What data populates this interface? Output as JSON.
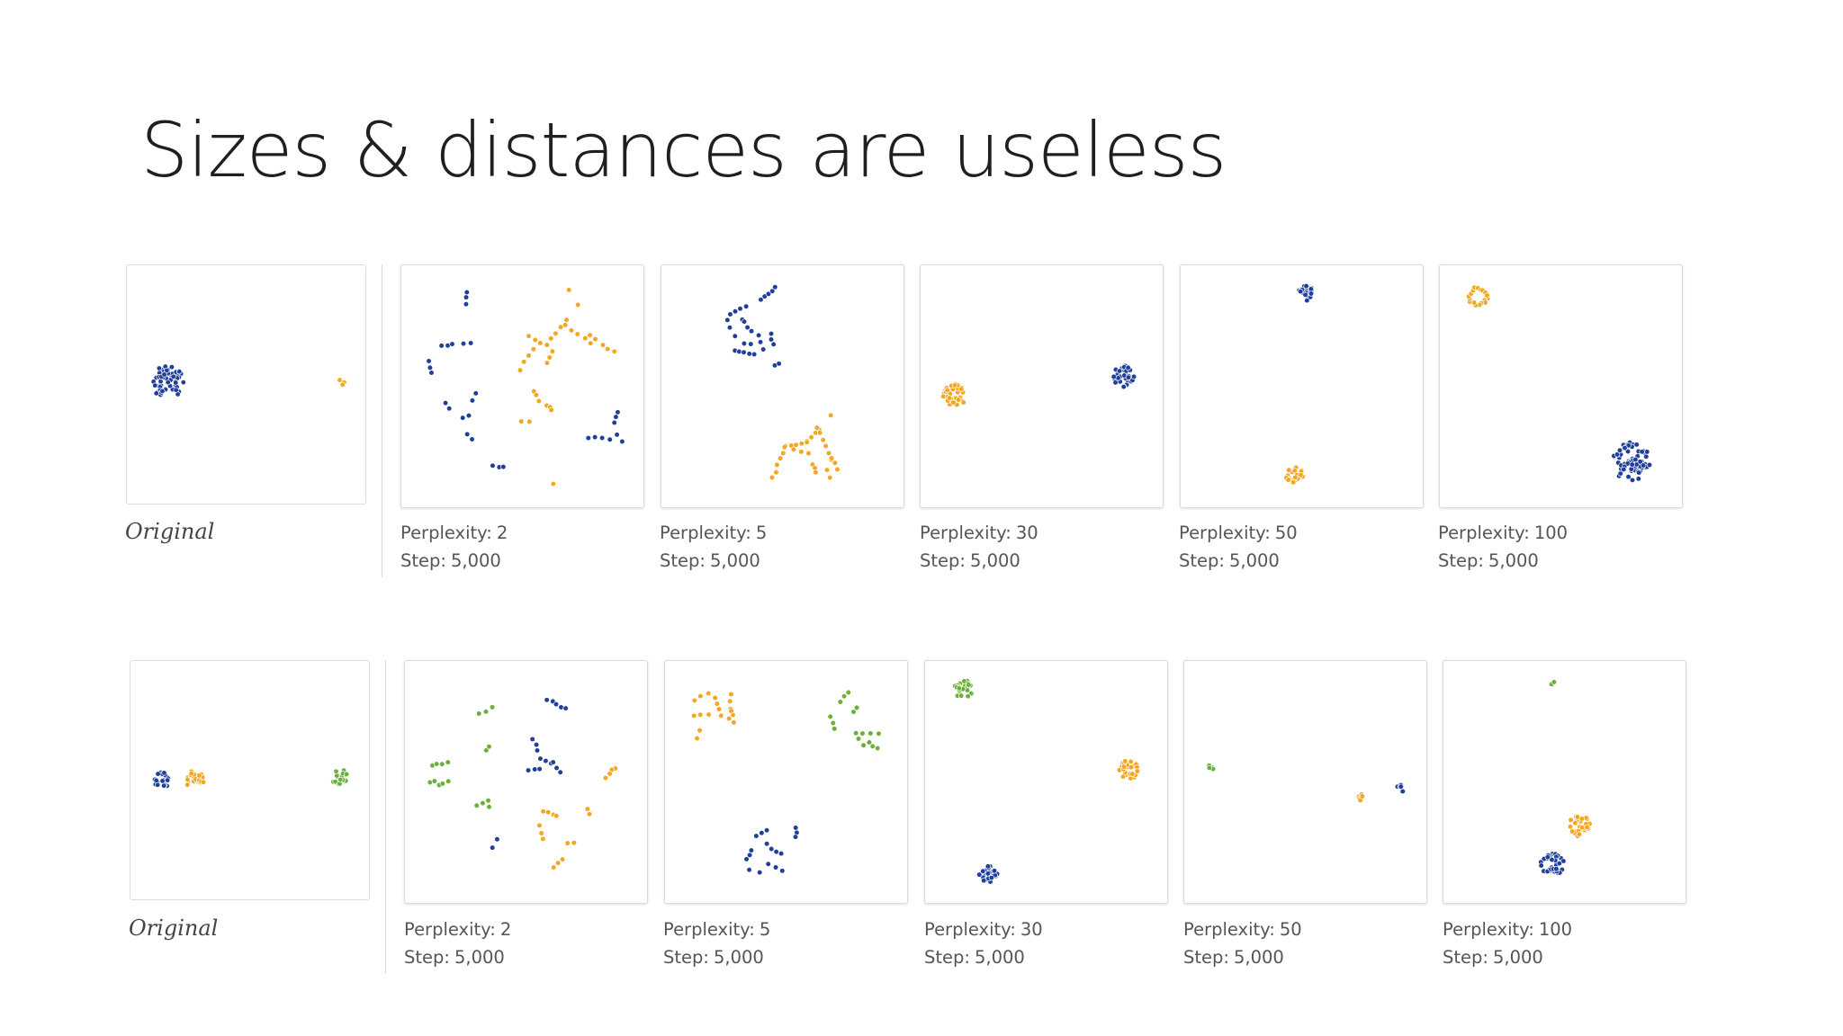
{
  "slide": {
    "title": "Sizes & distances are useless"
  },
  "rows": [
    {
      "original_caption": "Original",
      "panels": [
        {
          "perplexity": "2",
          "step": "5,000"
        },
        {
          "perplexity": "5",
          "step": "5,000"
        },
        {
          "perplexity": "30",
          "step": "5,000"
        },
        {
          "perplexity": "50",
          "step": "5,000"
        },
        {
          "perplexity": "100",
          "step": "5,000"
        }
      ]
    },
    {
      "original_caption": "Original",
      "panels": [
        {
          "perplexity": "2",
          "step": "5,000"
        },
        {
          "perplexity": "5",
          "step": "5,000"
        },
        {
          "perplexity": "30",
          "step": "5,000"
        },
        {
          "perplexity": "50",
          "step": "5,000"
        },
        {
          "perplexity": "100",
          "step": "5,000"
        }
      ]
    }
  ],
  "labels": {
    "perplexity": "Perplexity:",
    "step": "Step:"
  },
  "colors": {
    "blue": "#1f3f9a",
    "orange": "#f5a623",
    "green": "#6bb03b"
  }
}
